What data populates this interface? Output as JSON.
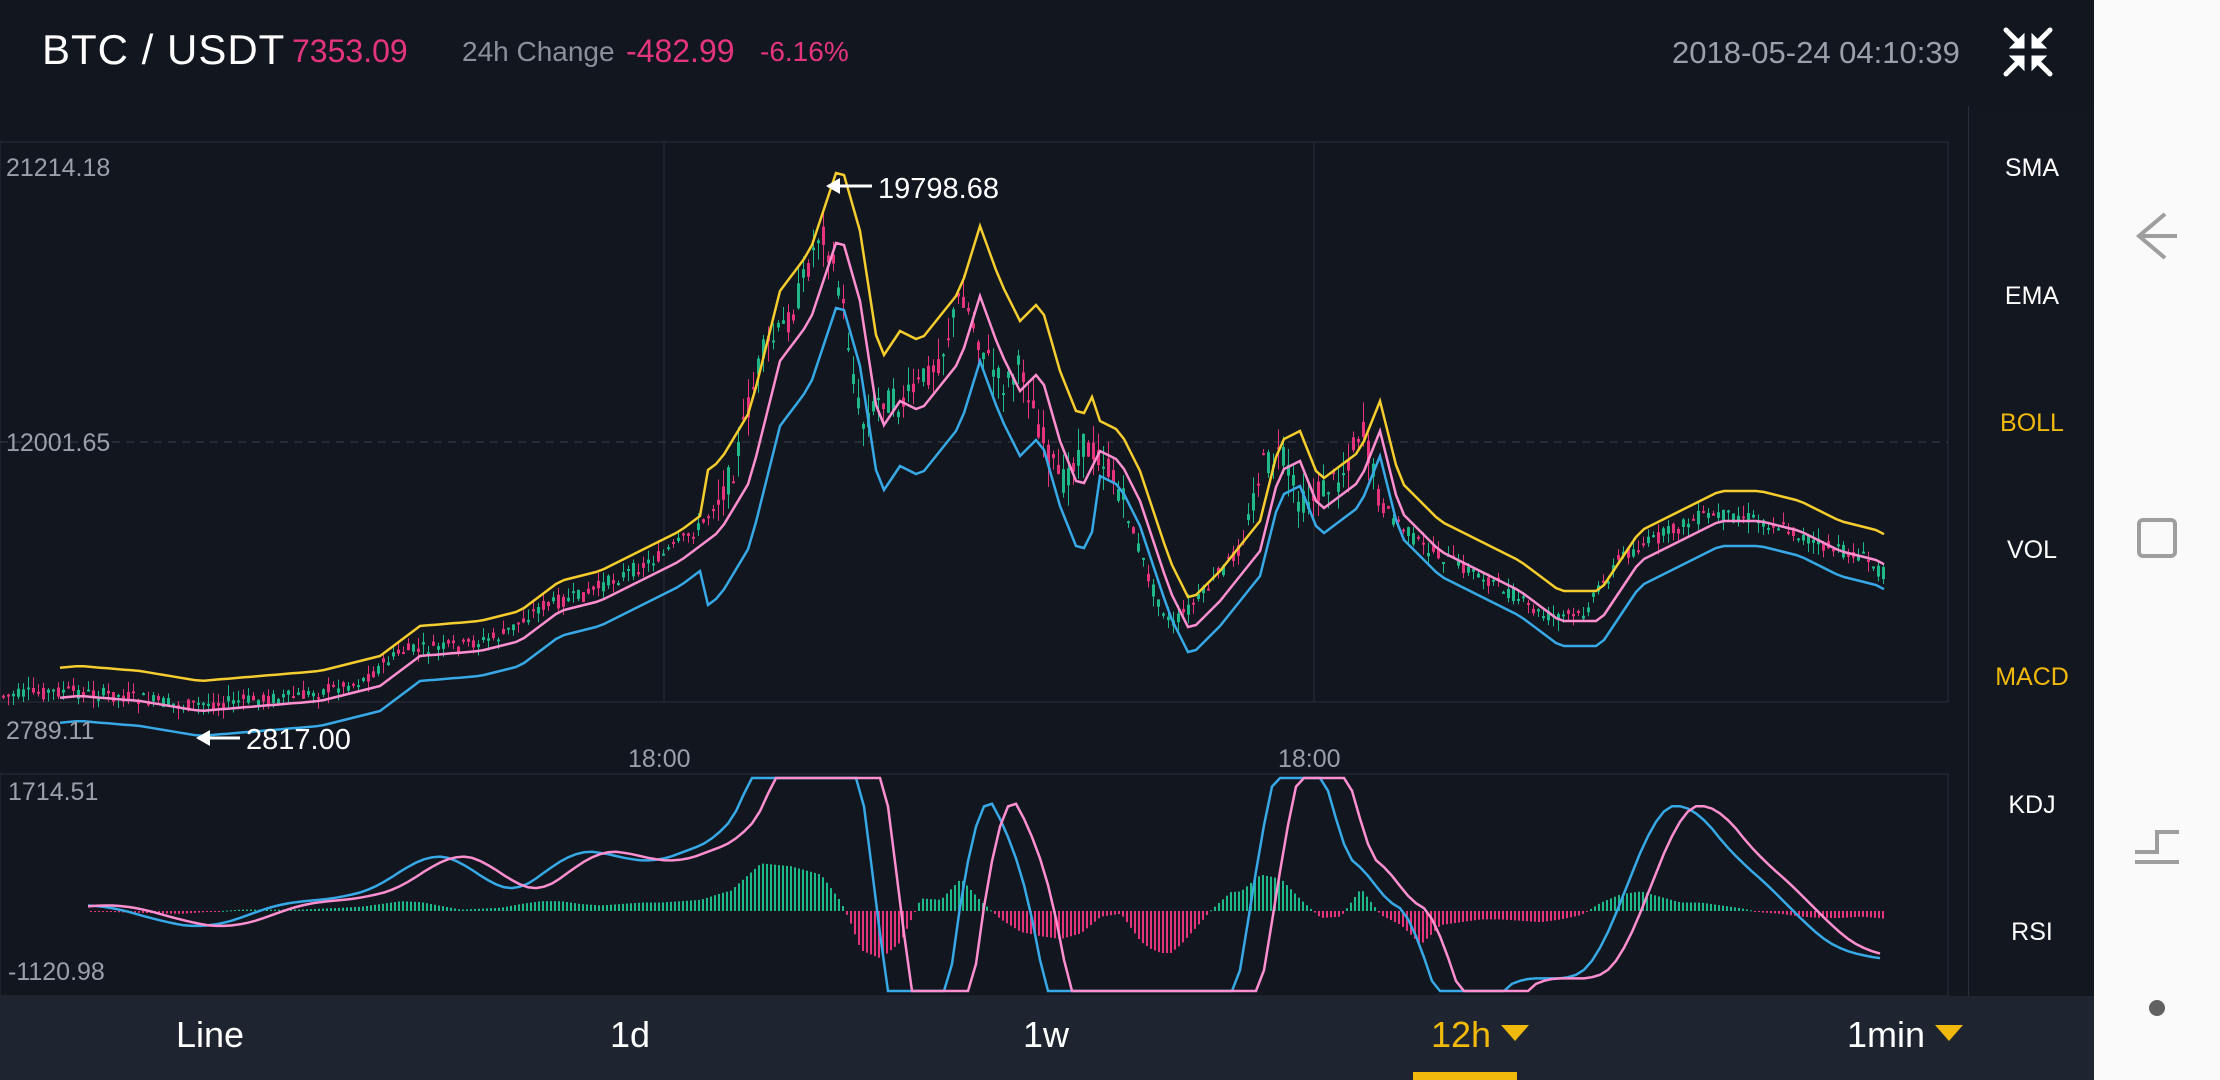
{
  "header": {
    "pair": "BTC / USDT",
    "last_price": "7353.09",
    "change_label": "24h Change",
    "change_abs": "-482.99",
    "change_pct": "-6.16%",
    "datetime": "2018-05-24 04:10:39",
    "collapse_icon": "collapse-arrows-icon"
  },
  "colors": {
    "background": "#12161f",
    "up": "#1fb889",
    "down": "#e4357c",
    "boll_upper": "#f5cd2e",
    "boll_mid": "#ff8fd0",
    "boll_lower": "#36a9e6",
    "accent": "#f0b90b"
  },
  "main_chart": {
    "y_max_label": "21214.18",
    "y_mid_label": "12001.65",
    "y_min_label": "2789.11",
    "high_marker": "19798.68",
    "low_marker": "2817.00",
    "x_labels": [
      "18:00",
      "18:00"
    ]
  },
  "sub_chart": {
    "y_max_label": "1714.51",
    "y_min_label": "-1120.98"
  },
  "indicators": [
    {
      "label": "SMA",
      "active": false
    },
    {
      "label": "EMA",
      "active": false
    },
    {
      "label": "BOLL",
      "active": true
    },
    {
      "label": "VOL",
      "active": false
    },
    {
      "label": "MACD",
      "active": true
    },
    {
      "label": "KDJ",
      "active": false
    },
    {
      "label": "RSI",
      "active": false
    }
  ],
  "timeframes": [
    {
      "label": "Line",
      "active": false,
      "dropdown": false
    },
    {
      "label": "1d",
      "active": false,
      "dropdown": false
    },
    {
      "label": "1w",
      "active": false,
      "dropdown": false
    },
    {
      "label": "12h",
      "active": true,
      "dropdown": true
    },
    {
      "label": "1min",
      "active": false,
      "dropdown": true
    }
  ],
  "android_nav": [
    "back-icon",
    "recents-icon",
    "home-icon",
    "dot-icon"
  ]
}
